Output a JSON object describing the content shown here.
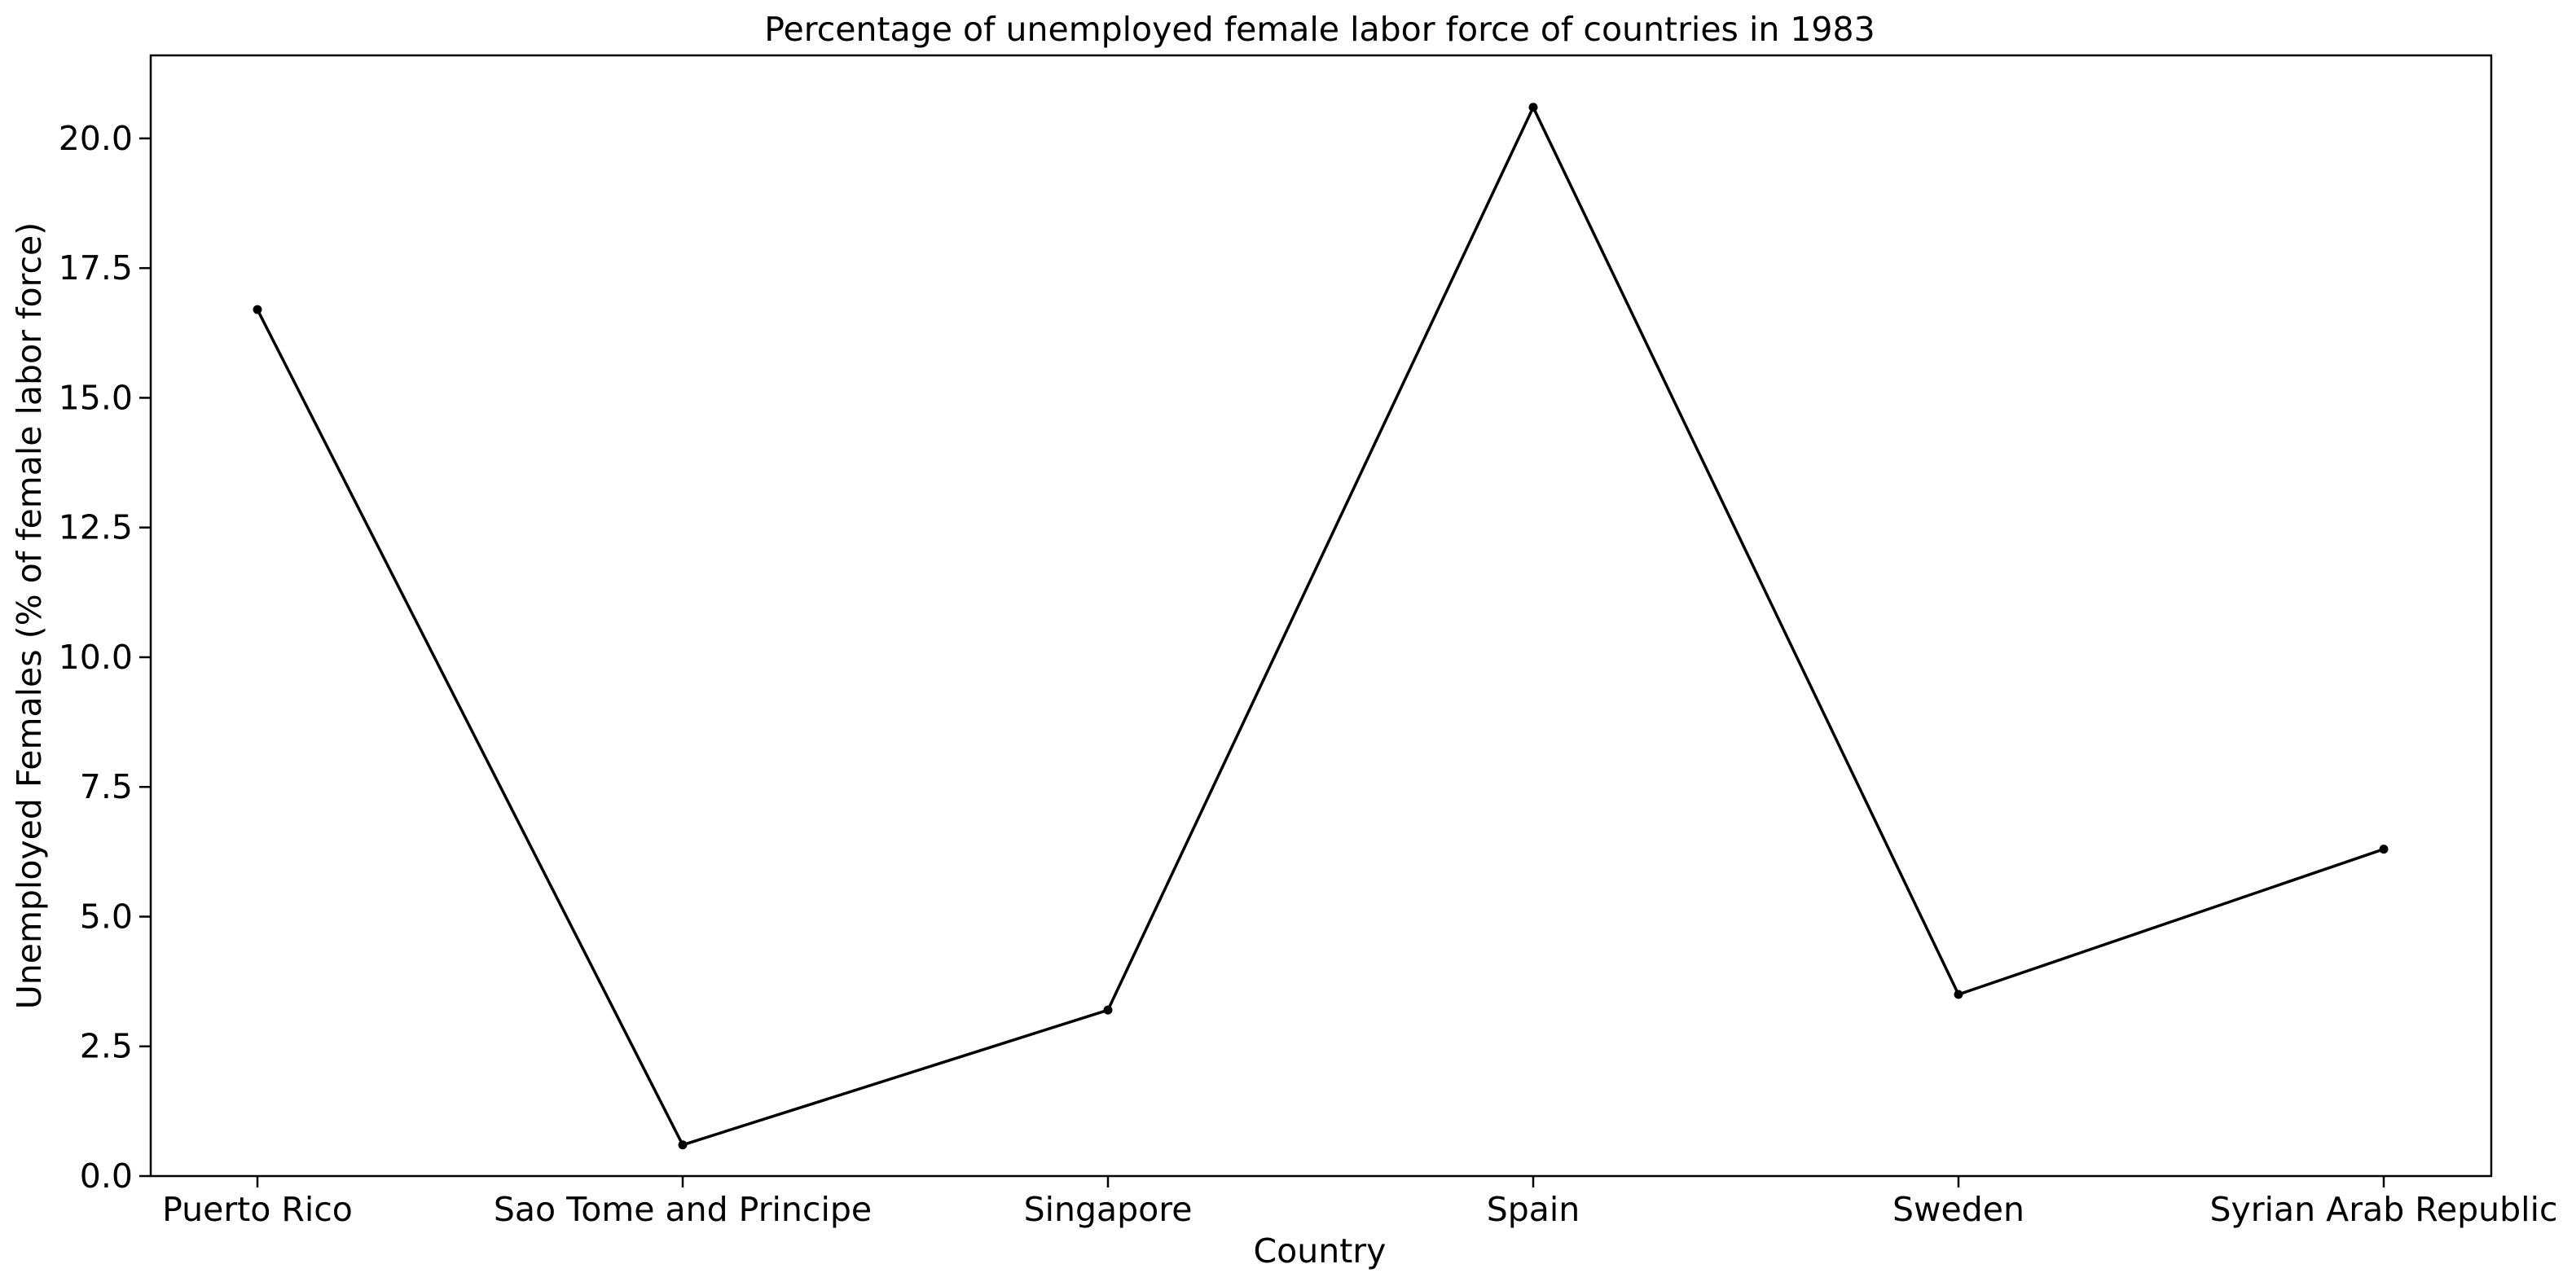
{
  "chart_data": {
    "type": "line",
    "title": "Percentage of unemployed female labor force of countries in 1983",
    "xlabel": "Country",
    "ylabel": "Unemployed Females (% of female labor force)",
    "categories": [
      "Puerto Rico",
      "Sao Tome and Principe",
      "Singapore",
      "Spain",
      "Sweden",
      "Syrian Arab Republic"
    ],
    "series": [
      {
        "values": [
          16.7,
          0.6,
          3.2,
          20.6,
          3.5,
          6.3
        ]
      }
    ],
    "ylim": [
      0,
      21.6
    ],
    "yticks": [
      "0.0",
      "2.5",
      "5.0",
      "7.5",
      "10.0",
      "12.5",
      "15.0",
      "17.5",
      "20.0"
    ],
    "grid": false,
    "colors": {
      "line": "#000000",
      "axes": "#000000",
      "background": "#ffffff"
    }
  }
}
